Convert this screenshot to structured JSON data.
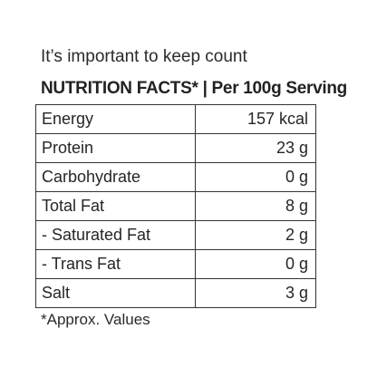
{
  "intro": "It’s important to keep count",
  "heading": "NUTRITION FACTS* | Per 100g Serving",
  "rows": [
    {
      "name": "Energy",
      "value": "157 kcal"
    },
    {
      "name": "Protein",
      "value": "23 g"
    },
    {
      "name": "Carbohydrate",
      "value": "0 g"
    },
    {
      "name": "Total Fat",
      "value": "8 g"
    },
    {
      "name": "- Saturated Fat",
      "value": "2 g"
    },
    {
      "name": "- Trans Fat",
      "value": "0 g"
    },
    {
      "name": "Salt",
      "value": "3 g"
    }
  ],
  "footnote": "*Approx. Values"
}
